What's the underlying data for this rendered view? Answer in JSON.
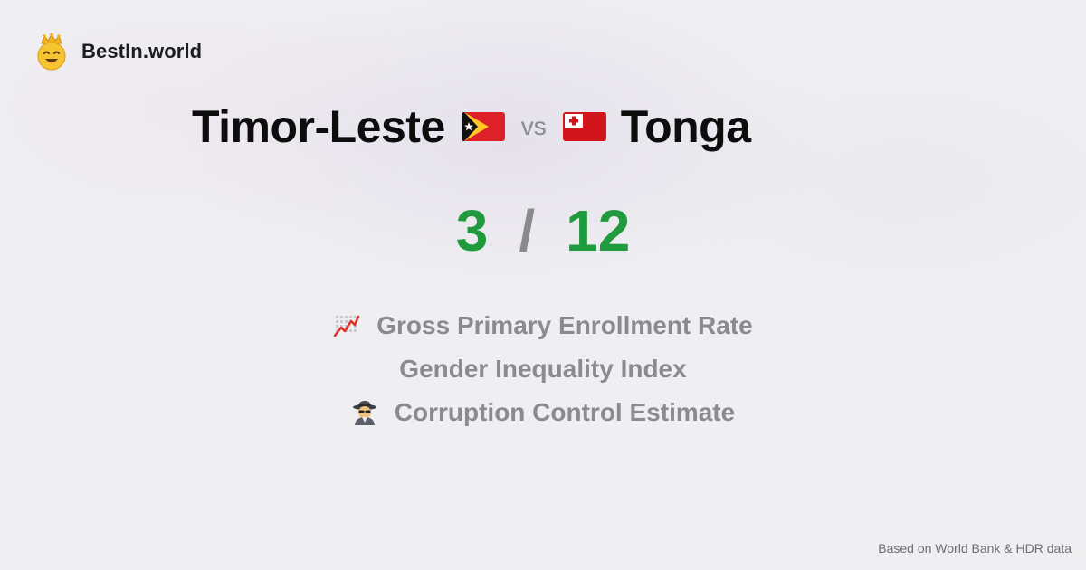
{
  "brand": {
    "name": "BestIn.world",
    "logo_icon": "crowned-smiley-icon"
  },
  "comparison": {
    "left": {
      "country": "Timor-Leste",
      "flag_icon": "timor-leste-flag-icon"
    },
    "separator": "vs",
    "right": {
      "country": "Tonga",
      "flag_icon": "tonga-flag-icon"
    }
  },
  "score": {
    "left": "3",
    "separator": "/",
    "right": "12",
    "color": "#1f9a3d"
  },
  "metrics": [
    {
      "label": "Gross Primary Enrollment Rate",
      "icon": "chart-increasing-icon"
    },
    {
      "label": "Gender Inequality Index",
      "icon": ""
    },
    {
      "label": "Corruption Control Estimate",
      "icon": "detective-icon"
    }
  ],
  "footer": {
    "source": "Based on World Bank & HDR data"
  }
}
